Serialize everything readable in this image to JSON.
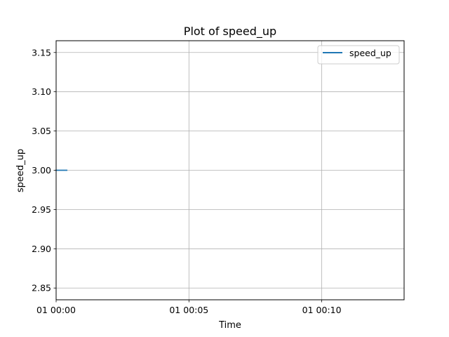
{
  "chart_data": {
    "type": "line",
    "title": "Plot of speed_up",
    "xlabel": "Time",
    "ylabel": "speed_up",
    "x_tick_labels": [
      "01 00:00",
      "01 00:05",
      "01 00:10"
    ],
    "y_tick_labels": [
      "2.85",
      "2.90",
      "2.95",
      "3.00",
      "3.05",
      "3.10",
      "3.15"
    ],
    "y_ticks": [
      2.85,
      2.9,
      2.95,
      3.0,
      3.05,
      3.1,
      3.15
    ],
    "ylim": [
      2.835,
      3.165
    ],
    "x_ticks_minutes": [
      0,
      5,
      10
    ],
    "xlim_minutes": [
      0,
      13.1
    ],
    "grid": true,
    "legend_position": "top-right",
    "series": [
      {
        "name": "speed_up",
        "color": "#1f77b4",
        "x_minutes": [
          0,
          0.4
        ],
        "values": [
          3.0,
          3.0
        ]
      }
    ]
  }
}
